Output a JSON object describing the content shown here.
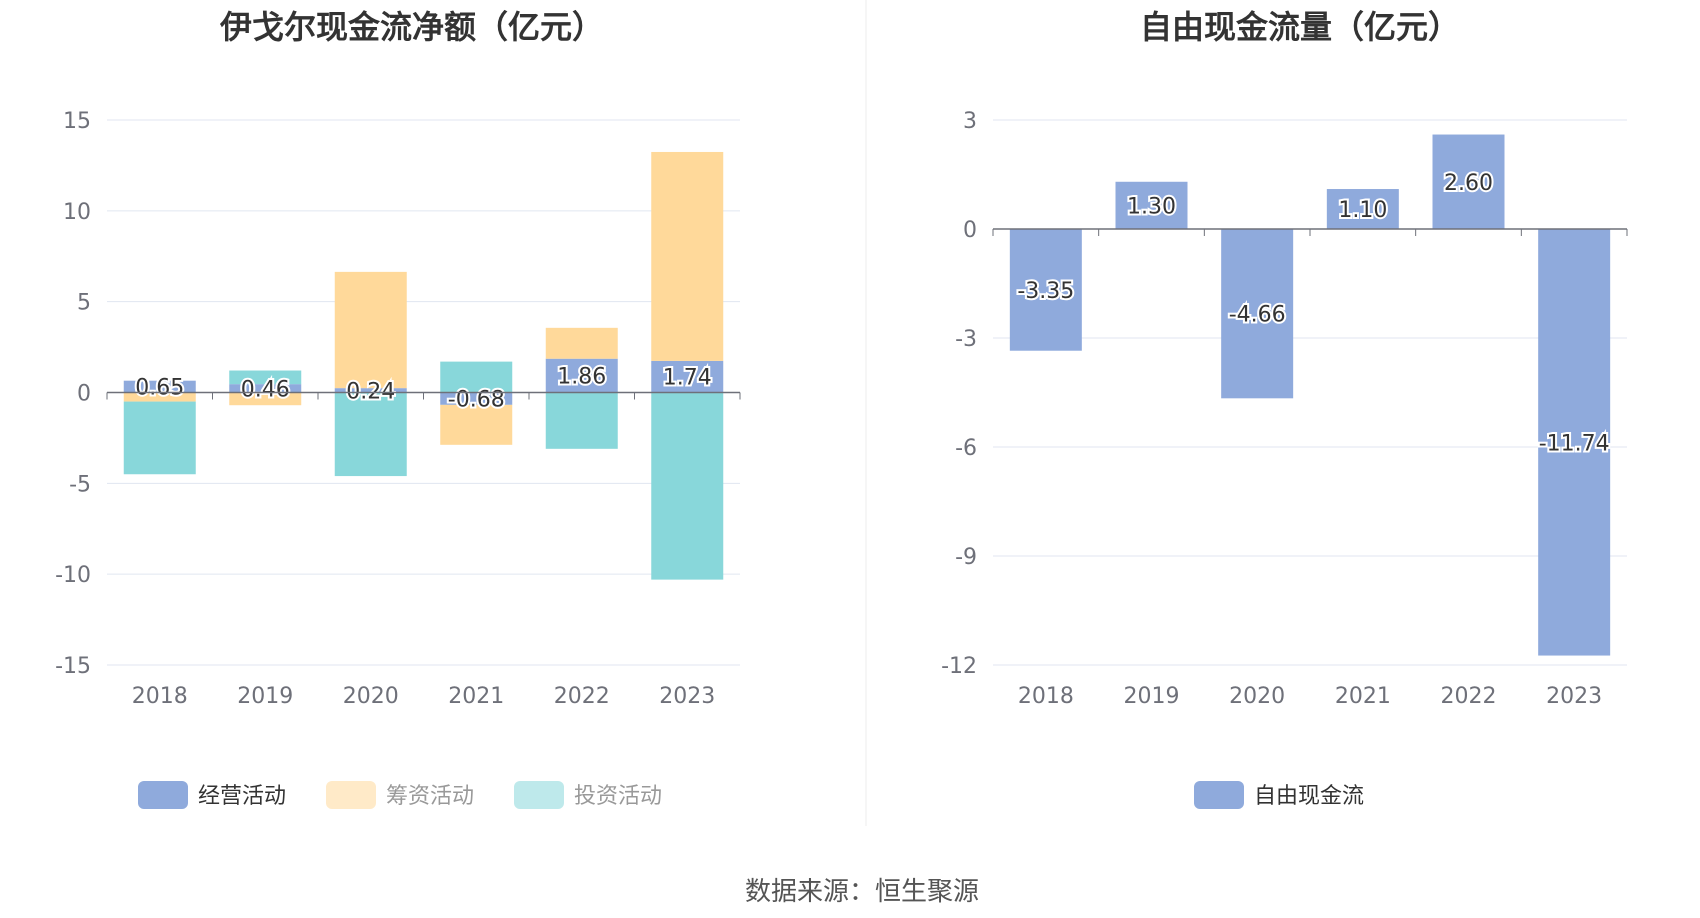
{
  "source_label": "数据来源：恒生聚源",
  "chart_data": [
    {
      "type": "bar",
      "stacked": true,
      "title": "伊戈尔现金流净额（亿元）",
      "categories": [
        "2018",
        "2019",
        "2020",
        "2021",
        "2022",
        "2023"
      ],
      "ylim": [
        -15,
        15
      ],
      "yticks": [
        "15",
        "10",
        "5",
        "0",
        "-5",
        "-10",
        "-15"
      ],
      "grid": true,
      "legend_position": "bottom",
      "series": [
        {
          "name": "经营活动",
          "color": "#8faadc",
          "values": [
            0.65,
            0.46,
            0.24,
            -0.68,
            1.86,
            1.74
          ],
          "labels": [
            "0.65",
            "0.46",
            "0.24",
            "-0.68",
            "1.86",
            "1.74"
          ]
        },
        {
          "name": "筹资活动",
          "color": "#ffd99a",
          "values": [
            -0.5,
            -0.7,
            6.4,
            -2.2,
            1.7,
            11.5
          ]
        },
        {
          "name": "投资活动",
          "color": "#88d7da",
          "values": [
            -4.0,
            0.75,
            -4.6,
            1.7,
            -3.1,
            -10.3
          ]
        }
      ]
    },
    {
      "type": "bar",
      "title": "自由现金流量（亿元）",
      "categories": [
        "2018",
        "2019",
        "2020",
        "2021",
        "2022",
        "2023"
      ],
      "ylim": [
        -12,
        3
      ],
      "yticks": [
        "3",
        "0",
        "-3",
        "-6",
        "-9",
        "-12"
      ],
      "grid": true,
      "legend_position": "bottom",
      "series": [
        {
          "name": "自由现金流",
          "color": "#8faadc",
          "values": [
            -3.35,
            1.3,
            -4.66,
            1.1,
            2.6,
            -11.74
          ],
          "labels": [
            "-3.35",
            "1.30",
            "-4.66",
            "1.10",
            "2.60",
            "-11.74"
          ]
        }
      ]
    }
  ]
}
